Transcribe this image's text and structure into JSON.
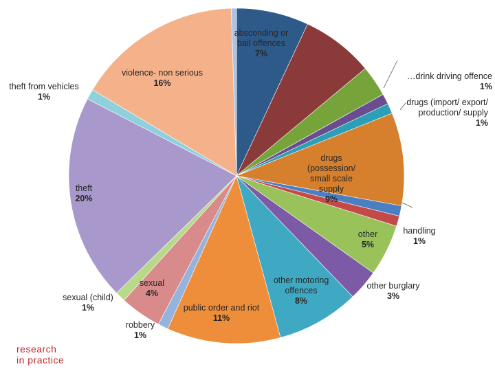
{
  "chart_data": {
    "type": "pie",
    "title": "",
    "slices": [
      {
        "label": "absconding or bail offences",
        "value": 7,
        "display": "7%",
        "color": "#2e5a8a"
      },
      {
        "label": "",
        "value": 7,
        "display": "",
        "color": "#8b3a3a"
      },
      {
        "label": "",
        "value": 3,
        "display": "",
        "color": "#76a33a"
      },
      {
        "label": "…drink driving offence",
        "value": 1,
        "display": "1%",
        "color": "#6a4d8f"
      },
      {
        "label": "drugs (import/ export/ production/ supply",
        "value": 1,
        "display": "1%",
        "color": "#2b9fb5"
      },
      {
        "label": "drugs (possession/ small scale supply",
        "value": 9,
        "display": "9%",
        "color": "#d6802e"
      },
      {
        "label": "",
        "value": 1,
        "display": "",
        "color": "#4a7fc4"
      },
      {
        "label": "handling",
        "value": 1,
        "display": "1%",
        "color": "#c44a4a"
      },
      {
        "label": "other",
        "value": 5,
        "display": "5%",
        "color": "#9ac25a"
      },
      {
        "label": "other burglary",
        "value": 3,
        "display": "3%",
        "color": "#7d5aa6"
      },
      {
        "label": "other motoring offences",
        "value": 8,
        "display": "8%",
        "color": "#3fa9c4"
      },
      {
        "label": "public order and riot",
        "value": 11,
        "display": "11%",
        "color": "#ef8e3a"
      },
      {
        "label": "robbery",
        "value": 1,
        "display": "1%",
        "color": "#94b4de"
      },
      {
        "label": "sexual",
        "value": 4,
        "display": "4%",
        "color": "#d98a8a"
      },
      {
        "label": "sexual (child)",
        "value": 1,
        "display": "1%",
        "color": "#b8d98a"
      },
      {
        "label": "theft",
        "value": 20,
        "display": "20%",
        "color": "#a898cc"
      },
      {
        "label": "theft from vehicles",
        "value": 1,
        "display": "1%",
        "color": "#8fd0dc"
      },
      {
        "label": "violence- non serious",
        "value": 16,
        "display": "16%",
        "color": "#f5b28a"
      },
      {
        "label": "",
        "value": 0.5,
        "display": "",
        "color": "#a9c4e6"
      }
    ],
    "start_angle_deg": 0,
    "direction": "clockwise"
  },
  "brand": {
    "line1": "research",
    "line2": "in practice",
    "color": "#c0272d"
  }
}
